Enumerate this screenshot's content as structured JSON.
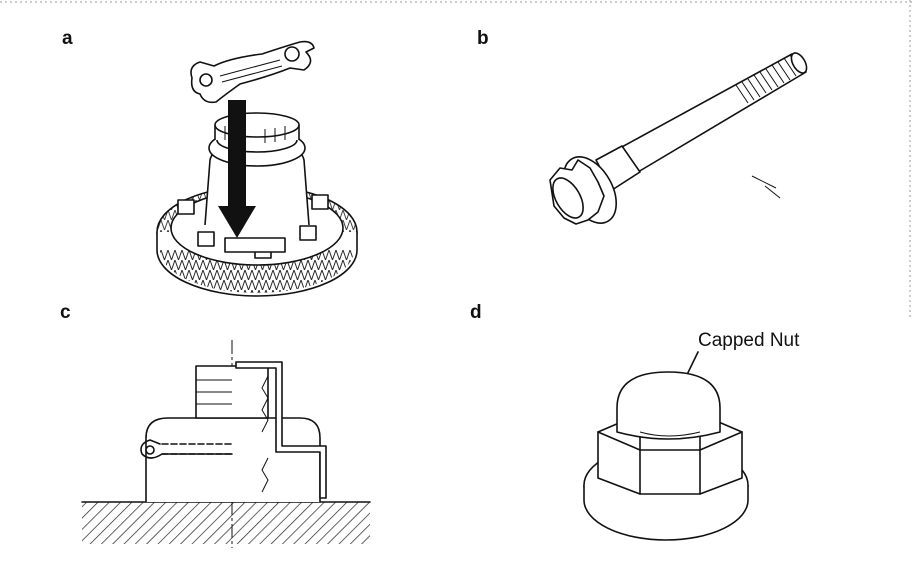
{
  "panels": [
    {
      "label": "a",
      "icon": "differential-wrench-icon"
    },
    {
      "label": "b",
      "icon": "long-bolt-icon"
    },
    {
      "label": "c",
      "icon": "nut-lock-plate-section-icon"
    },
    {
      "label": "d",
      "icon": "capped-nut-icon"
    }
  ],
  "callouts": {
    "capped_nut": "Capped Nut"
  }
}
